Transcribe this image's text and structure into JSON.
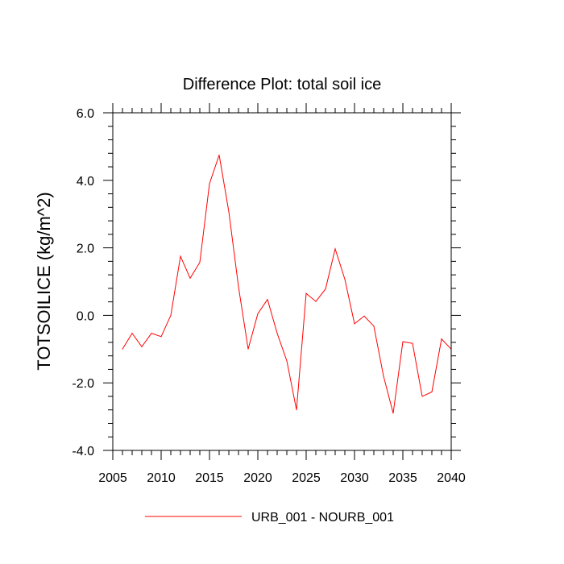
{
  "chart_data": {
    "type": "line",
    "title": "Difference Plot: total soil ice",
    "xlabel": "",
    "ylabel": "TOTSOILICE  (kg/m^2)",
    "xlim": [
      2005,
      2040
    ],
    "ylim": [
      -4.0,
      6.0
    ],
    "xticks": [
      2005,
      2010,
      2015,
      2020,
      2025,
      2030,
      2035,
      2040
    ],
    "xtick_labels": [
      "2005",
      "2010",
      "2015",
      "2020",
      "2025",
      "2030",
      "2035",
      "2040"
    ],
    "yticks": [
      -4,
      -2,
      0,
      2,
      4,
      6
    ],
    "ytick_labels": [
      "-4.0",
      "-2.0",
      "0.0",
      "2.0",
      "4.0",
      "6.0"
    ],
    "grid": false,
    "legend_position": "bottom",
    "series": [
      {
        "name": "URB_001 - NOURB_001",
        "color": "#ff0000",
        "x": [
          2006,
          2007,
          2008,
          2009,
          2010,
          2011,
          2012,
          2013,
          2014,
          2015,
          2016,
          2017,
          2018,
          2019,
          2020,
          2021,
          2022,
          2023,
          2024,
          2025,
          2026,
          2027,
          2028,
          2029,
          2030,
          2031,
          2032,
          2033,
          2034,
          2035,
          2036,
          2037,
          2038,
          2039,
          2040
        ],
        "y": [
          -1.0,
          -0.53,
          -0.93,
          -0.53,
          -0.63,
          0.0,
          1.75,
          1.1,
          1.57,
          3.9,
          4.75,
          3.07,
          0.85,
          -1.0,
          0.05,
          0.47,
          -0.53,
          -1.35,
          -2.8,
          0.65,
          0.41,
          0.78,
          1.97,
          1.07,
          -0.25,
          -0.02,
          -0.32,
          -1.8,
          -2.9,
          -0.78,
          -0.83,
          -2.4,
          -2.27,
          -0.7,
          -1.0
        ]
      }
    ]
  }
}
